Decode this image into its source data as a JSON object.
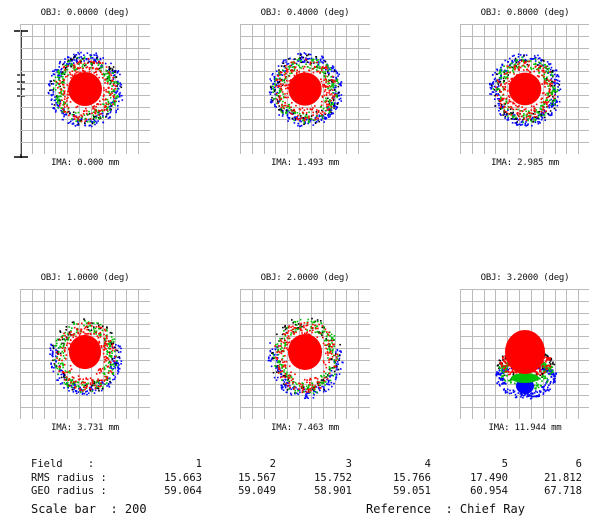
{
  "panels": [
    {
      "obj": "OBJ: 0.0000 (deg)",
      "ima": "IMA: 0.000 mm",
      "shape": "round",
      "scale": 1.0
    },
    {
      "obj": "OBJ: 0.4000 (deg)",
      "ima": "IMA: 1.493 mm",
      "shape": "round",
      "scale": 0.98
    },
    {
      "obj": "OBJ: 0.8000 (deg)",
      "ima": "IMA: 2.985 mm",
      "shape": "round",
      "scale": 0.96
    },
    {
      "obj": "OBJ: 1.0000 (deg)",
      "ima": "IMA: 3.731 mm",
      "shape": "drop",
      "scale": 0.95
    },
    {
      "obj": "OBJ: 2.0000 (deg)",
      "ima": "IMA: 7.463 mm",
      "shape": "drop",
      "scale": 1.0
    },
    {
      "obj": "OBJ: 3.2000 (deg)",
      "ima": "IMA: 11.944 mm",
      "shape": "coma",
      "scale": 1.0
    }
  ],
  "colors": {
    "red": "#ff0000",
    "green": "#00c000",
    "blue": "#0000ff",
    "black": "#000000",
    "grid": "#bbbbbb"
  },
  "table": {
    "field_label": "Field    :",
    "rms_label": "RMS radius :",
    "geo_label": "GEO radius :",
    "fields": [
      "1",
      "2",
      "3",
      "4",
      "5",
      "6"
    ],
    "rms": [
      "15.663",
      "15.567",
      "15.752",
      "15.766",
      "17.490",
      "21.812"
    ],
    "geo": [
      "59.064",
      "59.049",
      "58.901",
      "59.051",
      "60.954",
      "67.718"
    ],
    "scale_bar": "Scale bar  : 200",
    "reference": "Reference  : Chief Ray"
  }
}
